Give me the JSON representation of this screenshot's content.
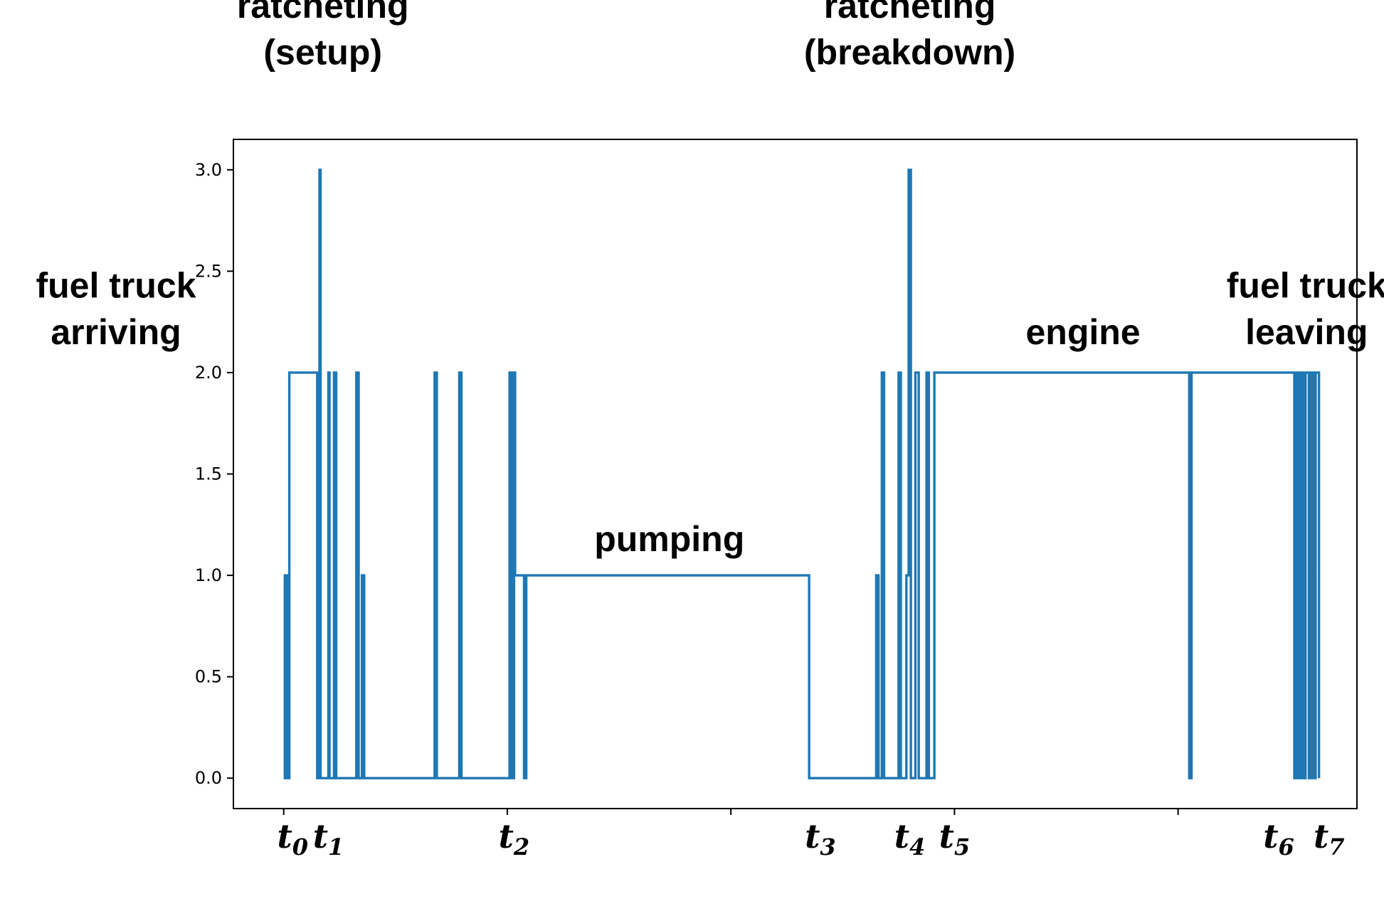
{
  "chart_data": {
    "type": "line",
    "step": true,
    "title": "",
    "xlabel": "",
    "ylabel": "",
    "xlim": [
      -0.45,
      9.6
    ],
    "ylim": [
      -0.15,
      3.15
    ],
    "yticks": [
      {
        "value": 0.0,
        "label": "0.0"
      },
      {
        "value": 0.5,
        "label": "0.5"
      },
      {
        "value": 1.0,
        "label": "1.0"
      },
      {
        "value": 1.5,
        "label": "1.5"
      },
      {
        "value": 2.0,
        "label": "2.0"
      },
      {
        "value": 2.5,
        "label": "2.5"
      },
      {
        "value": 3.0,
        "label": "3.0"
      }
    ],
    "xticks": [
      0,
      2,
      4,
      6,
      8
    ],
    "xtick_labels": [
      {
        "x": 0.08,
        "base": "t",
        "sub": "0"
      },
      {
        "x": 0.4,
        "base": "t",
        "sub": "1"
      },
      {
        "x": 2.06,
        "base": "t",
        "sub": "2"
      },
      {
        "x": 4.8,
        "base": "t",
        "sub": "3"
      },
      {
        "x": 5.6,
        "base": "t",
        "sub": "4"
      },
      {
        "x": 6.0,
        "base": "t",
        "sub": "5"
      },
      {
        "x": 8.9,
        "base": "t",
        "sub": "6"
      },
      {
        "x": 9.35,
        "base": "t",
        "sub": "7"
      }
    ],
    "series": [
      {
        "color": "#1f77b4",
        "x": [
          0.0,
          0.01,
          0.02,
          0.03,
          0.05,
          0.15,
          0.3,
          0.32,
          0.33,
          0.34,
          0.4,
          0.41,
          0.45,
          0.47,
          0.52,
          0.65,
          0.67,
          0.7,
          0.72,
          1.35,
          1.37,
          1.57,
          1.59,
          2.02,
          2.03,
          2.04,
          2.05,
          2.06,
          2.07,
          2.15,
          2.17,
          4.7,
          4.72,
          5.3,
          5.32,
          5.35,
          5.37,
          5.5,
          5.52,
          5.57,
          5.59,
          5.6,
          5.61,
          5.62,
          5.65,
          5.68,
          5.7,
          5.75,
          5.77,
          5.82,
          5.84,
          8.1,
          8.12,
          9.04,
          9.06,
          9.08,
          9.1,
          9.12,
          9.14,
          9.17,
          9.19,
          9.21,
          9.23,
          9.26
        ],
        "y": [
          1,
          0,
          1,
          0,
          2,
          2,
          0,
          3,
          0,
          0,
          2,
          0,
          2,
          0,
          0,
          2,
          0,
          1,
          0,
          2,
          0,
          2,
          0,
          2,
          0,
          2,
          0,
          2,
          1,
          0,
          1,
          0,
          0,
          1,
          0,
          2,
          0,
          2,
          0,
          1,
          3,
          3,
          0,
          0,
          2,
          0,
          0,
          2,
          0,
          2,
          2,
          0,
          2,
          0,
          2,
          0,
          2,
          0,
          2,
          0,
          2,
          0,
          2,
          0
        ]
      }
    ],
    "annotations": [
      {
        "text": "ratcheting",
        "x": 0.35,
        "y": 3.75
      },
      {
        "text": "(setup)",
        "x": 0.35,
        "y": 3.52
      },
      {
        "text": "ratcheting",
        "x": 5.6,
        "y": 3.75
      },
      {
        "text": "(breakdown)",
        "x": 5.6,
        "y": 3.52
      },
      {
        "text": "fuel truck",
        "x": -1.5,
        "y": 2.37
      },
      {
        "text": "arriving",
        "x": -1.5,
        "y": 2.14
      },
      {
        "text": "pumping",
        "x": 3.45,
        "y": 1.12
      },
      {
        "text": "engine",
        "x": 7.15,
        "y": 2.14
      },
      {
        "text": "fuel truck",
        "x": 9.15,
        "y": 2.37
      },
      {
        "text": "leaving",
        "x": 9.15,
        "y": 2.14
      }
    ]
  }
}
